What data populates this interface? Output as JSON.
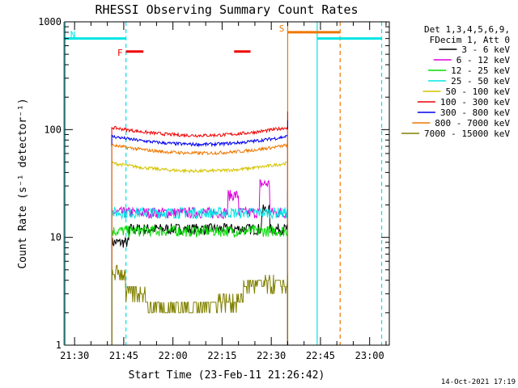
{
  "chart_data": {
    "type": "line",
    "title": "RHESSI Observing Summary Count Rates",
    "xlabel": "Start Time (23-Feb-11 21:26:42)",
    "ylabel": "Count Rate (s⁻¹ detector⁻¹)",
    "y_scale": "log",
    "ylim": [
      1,
      1000
    ],
    "xlim_minutes": [
      21.45,
      23.1
    ],
    "x_ticks": [
      "21:30",
      "21:45",
      "22:00",
      "22:15",
      "22:30",
      "22:45",
      "23:00"
    ],
    "y_ticks": [
      "1",
      "10",
      "100",
      "1000"
    ],
    "legend_header": [
      "Det 1,3,4,5,6,9,",
      "FDecim 1, Att 0"
    ],
    "legend_position": "right",
    "series": [
      {
        "name": "3 - 6 keV",
        "color": "#000000",
        "base": 12
      },
      {
        "name": "6 - 12 keV",
        "color": "#dd00dd",
        "base": 17
      },
      {
        "name": "12 - 25 keV",
        "color": "#00dd00",
        "base": 11.5
      },
      {
        "name": "25 - 50 keV",
        "color": "#00e5e5",
        "base": 17
      },
      {
        "name": "50 - 100 keV",
        "color": "#d4c400",
        "base": 43
      },
      {
        "name": "100 - 300 keV",
        "color": "#ee0000",
        "base": 92
      },
      {
        "name": "300 - 800 keV",
        "color": "#0000ee",
        "base": 76
      },
      {
        "name": "800 - 7000 keV",
        "color": "#ee7700",
        "base": 63
      },
      {
        "name": "7000 - 15000 keV",
        "color": "#808000",
        "base": 2.7
      }
    ],
    "data_interval": {
      "start": "21:41:20",
      "end": "22:35:00"
    },
    "flags": [
      {
        "label": "N",
        "color": "#00e5e5",
        "level": 700,
        "intervals": [
          [
            "21:26:42",
            "21:45:40"
          ],
          [
            "22:44:00",
            "23:03:40"
          ]
        ]
      },
      {
        "label": "F",
        "color": "#ee0000",
        "level": 530,
        "intervals": [
          [
            "21:45:40",
            "21:51:00"
          ],
          [
            "22:18:40",
            "22:23:40"
          ]
        ]
      },
      {
        "label": "S",
        "color": "#ee7700",
        "level": 800,
        "intervals": [
          [
            "22:35:00",
            "22:51:00"
          ]
        ]
      }
    ],
    "vertical_markers": [
      {
        "time": "21:26:42",
        "color": "#00e5e5",
        "style": "solid"
      },
      {
        "time": "21:45:40",
        "color": "#00e5e5",
        "style": "dashed"
      },
      {
        "time": "22:35:00",
        "color": "#ee7700",
        "style": "solid"
      },
      {
        "time": "22:44:00",
        "color": "#00e5e5",
        "style": "solid"
      },
      {
        "time": "22:51:00",
        "color": "#ee7700",
        "style": "dashed"
      },
      {
        "time": "23:03:40",
        "color": "#00e5e5",
        "style": "dashed"
      }
    ]
  },
  "footer_date": "14-Oct-2021 17:19"
}
